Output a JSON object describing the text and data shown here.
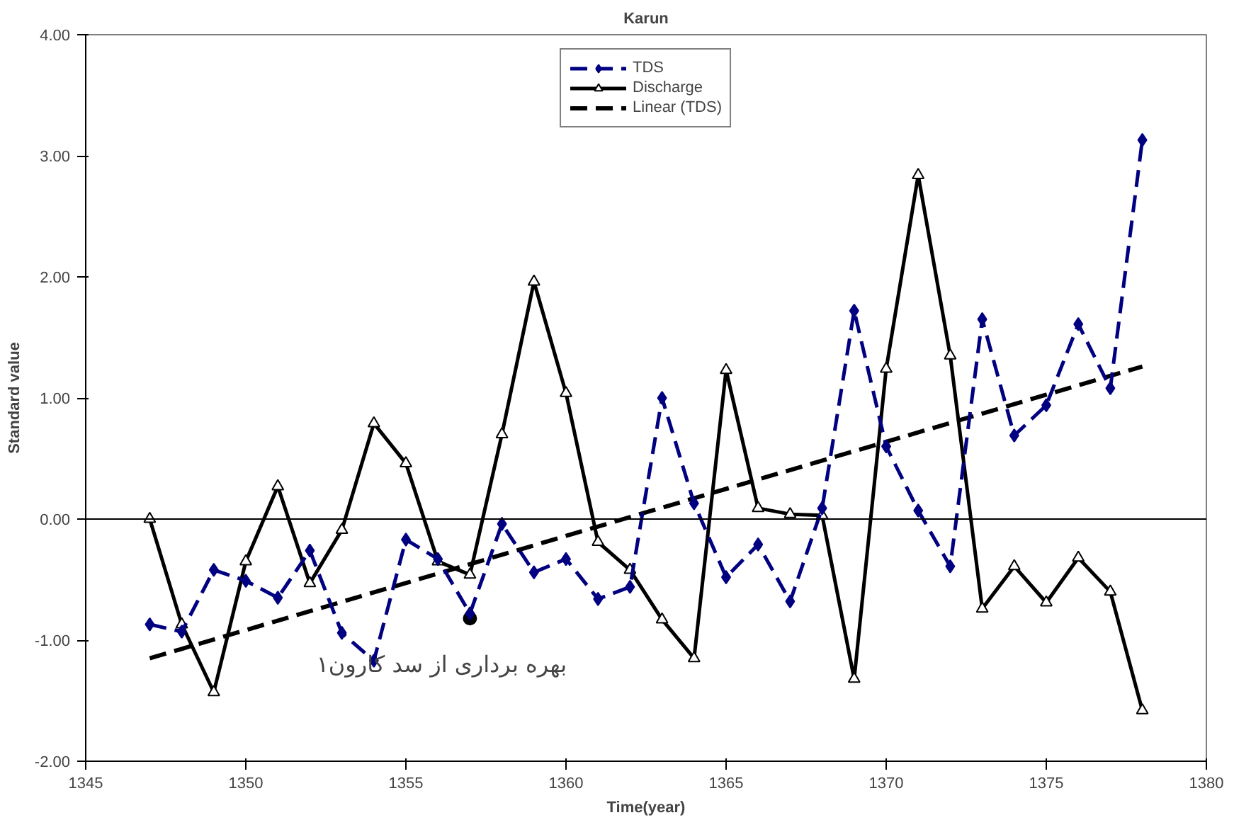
{
  "chart_data": {
    "type": "line",
    "title": "Karun",
    "xlabel": "Time(year)",
    "ylabel": "Standard value",
    "xlim": [
      1345,
      1380
    ],
    "xticks": [
      1345,
      1350,
      1355,
      1360,
      1365,
      1370,
      1375,
      1380
    ],
    "ylim": [
      -2,
      4
    ],
    "yticks": [
      {
        "value": -2,
        "label": "-2.00"
      },
      {
        "value": -1,
        "label": "-1.00"
      },
      {
        "value": 0,
        "label": "0.00"
      },
      {
        "value": 1,
        "label": "1.00"
      },
      {
        "value": 2,
        "label": "2.00"
      },
      {
        "value": 3,
        "label": "3.00"
      },
      {
        "value": 4,
        "label": "4.00"
      }
    ],
    "grid": false,
    "legend": "top",
    "ref_lines": [
      {
        "axis": "y",
        "value": 0,
        "color": "#000000",
        "line_style": "solid"
      }
    ],
    "annotations": [
      {
        "text": "بهره برداری از سد کارون۱",
        "x": 1357,
        "y": -0.82
      }
    ],
    "x": [
      1347,
      1348,
      1349,
      1350,
      1351,
      1352,
      1353,
      1354,
      1355,
      1356,
      1357,
      1358,
      1359,
      1360,
      1361,
      1362,
      1363,
      1364,
      1365,
      1366,
      1367,
      1368,
      1369,
      1370,
      1371,
      1372,
      1373,
      1374,
      1375,
      1376,
      1377,
      1378
    ],
    "series": [
      {
        "name": "TDS",
        "color": "#000080",
        "marker": "diamond",
        "line_style": "dashed",
        "values": [
          -0.87,
          -0.93,
          -0.42,
          -0.51,
          -0.65,
          -0.26,
          -0.94,
          -1.17,
          -0.17,
          -0.33,
          -0.78,
          -0.04,
          -0.44,
          -0.33,
          -0.66,
          -0.56,
          1.0,
          0.13,
          -0.48,
          -0.21,
          -0.68,
          0.09,
          1.72,
          0.6,
          0.07,
          -0.39,
          1.65,
          0.69,
          0.94,
          1.61,
          1.08,
          3.13
        ]
      },
      {
        "name": "Discharge",
        "color": "#000000",
        "marker": "triangle",
        "line_style": "solid",
        "values": [
          0.0,
          -0.87,
          -1.43,
          -0.35,
          0.27,
          -0.53,
          -0.09,
          0.79,
          0.46,
          -0.35,
          -0.46,
          0.7,
          1.96,
          1.04,
          -0.19,
          -0.42,
          -0.83,
          -1.15,
          1.23,
          0.09,
          0.04,
          0.03,
          -1.32,
          1.24,
          2.84,
          1.35,
          -0.74,
          -0.39,
          -0.69,
          -0.32,
          -0.6,
          -1.58
        ]
      },
      {
        "name": "Linear (TDS)",
        "color": "#000000",
        "marker": "none",
        "line_style": "dashed",
        "x": [
          1347,
          1378
        ],
        "values": [
          -1.15,
          1.26
        ]
      }
    ]
  }
}
